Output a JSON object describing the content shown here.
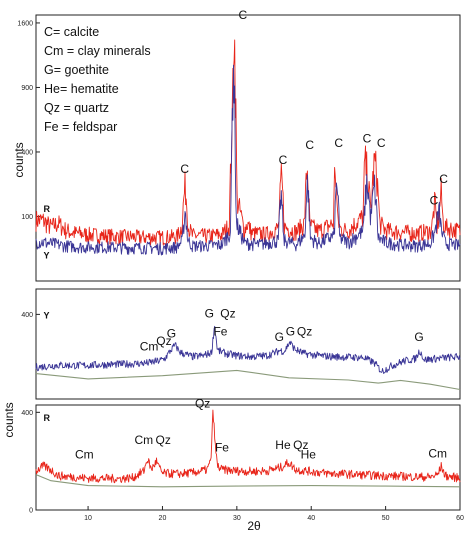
{
  "chart_data": [
    {
      "type": "line",
      "panel": "top",
      "xlim": [
        3,
        60
      ],
      "ylim": [
        0,
        1700
      ],
      "y_scale": "sqrt",
      "y_ticks": [
        100,
        400,
        900,
        1600
      ],
      "ylabel": "counts",
      "legend": [
        "C= calcite",
        "Cm = clay minerals",
        "G= goethite",
        "He= hematite",
        "Qz = quartz",
        "Fe = feldspar"
      ],
      "series": [
        {
          "name": "R",
          "color": "#e8251a",
          "x": [
            3,
            4,
            5,
            6,
            7,
            8,
            10,
            12,
            14,
            16,
            18,
            20,
            22,
            22.6,
            23.05,
            23.5,
            24,
            26,
            28,
            29,
            29.4,
            29.6,
            30,
            31,
            31.4,
            32,
            34,
            35.6,
            36,
            36.4,
            38,
            39.1,
            39.45,
            39.8,
            41,
            43,
            43.2,
            43.55,
            43.9,
            45,
            47,
            47.2,
            47.55,
            48,
            48.5,
            48.8,
            49.2,
            50,
            52,
            54,
            56,
            56.3,
            56.6,
            56.9,
            57.2,
            57.45,
            57.7,
            58,
            60
          ],
          "y": [
            90,
            88,
            70,
            80,
            62,
            56,
            52,
            50,
            48,
            47,
            46,
            46,
            48,
            70,
            220,
            70,
            50,
            49,
            52,
            75,
            600,
            1700,
            160,
            60,
            80,
            55,
            53,
            68,
            260,
            70,
            58,
            80,
            320,
            75,
            60,
            80,
            330,
            90,
            65,
            62,
            100,
            350,
            280,
            110,
            350,
            280,
            80,
            62,
            58,
            55,
            60,
            78,
            150,
            70,
            100,
            200,
            90,
            70,
            60
          ]
        },
        {
          "name": "Y",
          "color": "#3a3596",
          "x": [
            3,
            5,
            7,
            9,
            12,
            15,
            18,
            20,
            22,
            22.7,
            23.05,
            23.4,
            24,
            26,
            28,
            29.2,
            29.55,
            29.9,
            31,
            33,
            35.6,
            35.95,
            36.3,
            38,
            39.15,
            39.5,
            39.85,
            41,
            43.1,
            43.45,
            43.8,
            45,
            47,
            47.5,
            48,
            48.5,
            49,
            50,
            52,
            54,
            56,
            56.6,
            57.2,
            57.5,
            58,
            60
          ],
          "y": [
            38,
            34,
            30,
            28,
            28,
            27,
            27,
            26,
            28,
            40,
            120,
            40,
            30,
            30,
            32,
            60,
            1200,
            80,
            35,
            32,
            40,
            180,
            40,
            32,
            50,
            240,
            45,
            34,
            50,
            250,
            45,
            36,
            60,
            240,
            90,
            220,
            45,
            36,
            32,
            30,
            34,
            55,
            120,
            60,
            35,
            30
          ]
        }
      ],
      "annotations": [
        {
          "text": "C",
          "x": 23,
          "y": 280
        },
        {
          "text": "C",
          "x": 30.8,
          "y": 1650
        },
        {
          "text": "C",
          "x": 36.2,
          "y": 330
        },
        {
          "text": "C",
          "x": 39.8,
          "y": 420
        },
        {
          "text": "C",
          "x": 43.7,
          "y": 430
        },
        {
          "text": "C",
          "x": 47.5,
          "y": 460
        },
        {
          "text": "C",
          "x": 49.4,
          "y": 430
        },
        {
          "text": "C",
          "x": 56.5,
          "y": 140
        },
        {
          "text": "C",
          "x": 57.8,
          "y": 230
        }
      ],
      "series_marks": [
        {
          "text": "R",
          "x": 4,
          "y": 115
        },
        {
          "text": "Y",
          "x": 4,
          "y": 12
        }
      ]
    },
    {
      "type": "line",
      "panel": "middle",
      "xlim": [
        3,
        60
      ],
      "ylim": [
        0,
        520
      ],
      "y_ticks": [
        400
      ],
      "series": [
        {
          "name": "Y",
          "color": "#3a3596",
          "x": [
            3,
            6,
            9,
            12,
            15,
            18,
            19.5,
            20.3,
            21,
            21.7,
            22.4,
            24,
            25.5,
            26.6,
            27,
            27.4,
            28.5,
            30,
            32,
            34,
            35.2,
            35.8,
            36.4,
            37.1,
            37.8,
            39,
            41,
            43,
            45,
            47,
            48.5,
            49.5,
            51,
            52.5,
            54,
            54.6,
            55.2,
            56.5,
            58,
            60
          ],
          "y": [
            150,
            160,
            158,
            162,
            165,
            170,
            180,
            190,
            225,
            255,
            220,
            200,
            205,
            220,
            350,
            230,
            215,
            205,
            200,
            205,
            220,
            230,
            225,
            270,
            235,
            215,
            205,
            200,
            198,
            196,
            170,
            130,
            160,
            180,
            190,
            230,
            185,
            190,
            195,
            200
          ]
        },
        {
          "name": "baseline",
          "color": "#8a9a7a",
          "x": [
            3,
            10,
            20,
            30,
            37,
            45,
            49,
            52,
            56,
            60
          ],
          "y": [
            120,
            95,
            110,
            135,
            100,
            90,
            75,
            88,
            70,
            45
          ]
        }
      ],
      "annotations": [
        {
          "text": "Cm",
          "x": 18.2,
          "y": 230
        },
        {
          "text": "Qz",
          "x": 20.2,
          "y": 255
        },
        {
          "text": "G",
          "x": 21.2,
          "y": 290
        },
        {
          "text": "G",
          "x": 26.3,
          "y": 385
        },
        {
          "text": "Qz",
          "x": 28.8,
          "y": 385
        },
        {
          "text": "Fe",
          "x": 27.8,
          "y": 300
        },
        {
          "text": "G",
          "x": 35.7,
          "y": 275
        },
        {
          "text": "G",
          "x": 37.2,
          "y": 300
        },
        {
          "text": "Qz",
          "x": 39.1,
          "y": 300
        },
        {
          "text": "G",
          "x": 54.5,
          "y": 275
        }
      ],
      "series_marks": [
        {
          "text": "Y",
          "x": 4,
          "y": 380
        }
      ]
    },
    {
      "type": "line",
      "panel": "bottom",
      "xlim": [
        3,
        60
      ],
      "xlabel": "2θ",
      "x_ticks": [
        10,
        20,
        30,
        40,
        50,
        60
      ],
      "ylim": [
        0,
        430
      ],
      "y_ticks": [
        0,
        400
      ],
      "series": [
        {
          "name": "R",
          "color": "#e8251a",
          "x": [
            3,
            4,
            5,
            6,
            8,
            10,
            12,
            14,
            16,
            17.5,
            18,
            18.5,
            19.2,
            19.6,
            20,
            22,
            24,
            26,
            26.5,
            26.8,
            27.1,
            27.4,
            28,
            30,
            32,
            34,
            36,
            37,
            37.6,
            38,
            40,
            42,
            44,
            46,
            48,
            50,
            52,
            54,
            56,
            57,
            57.5,
            58,
            60
          ],
          "y": [
            160,
            180,
            165,
            140,
            135,
            130,
            130,
            128,
            132,
            160,
            210,
            165,
            200,
            170,
            150,
            148,
            152,
            165,
            200,
            410,
            260,
            180,
            165,
            160,
            158,
            160,
            175,
            195,
            175,
            165,
            158,
            150,
            148,
            145,
            142,
            140,
            138,
            136,
            135,
            145,
            180,
            140,
            130
          ]
        },
        {
          "name": "baseline",
          "color": "#8a9a7a",
          "x": [
            3,
            5,
            10,
            20,
            30,
            40,
            50,
            60
          ],
          "y": [
            145,
            120,
            100,
            95,
            98,
            100,
            98,
            95
          ]
        }
      ],
      "annotations": [
        {
          "text": "Qz",
          "x": 25.4,
          "y": 420
        },
        {
          "text": "Cm",
          "x": 9.5,
          "y": 210
        },
        {
          "text": "Cm",
          "x": 17.5,
          "y": 270
        },
        {
          "text": "Qz",
          "x": 20.1,
          "y": 270
        },
        {
          "text": "Fe",
          "x": 28,
          "y": 240
        },
        {
          "text": "He",
          "x": 36.2,
          "y": 250
        },
        {
          "text": "Qz",
          "x": 38.6,
          "y": 250
        },
        {
          "text": "He",
          "x": 39.6,
          "y": 210
        },
        {
          "text": "Cm",
          "x": 57,
          "y": 215
        }
      ],
      "series_marks": [
        {
          "text": "R",
          "x": 4,
          "y": 365
        }
      ],
      "ylabel": "counts"
    }
  ]
}
